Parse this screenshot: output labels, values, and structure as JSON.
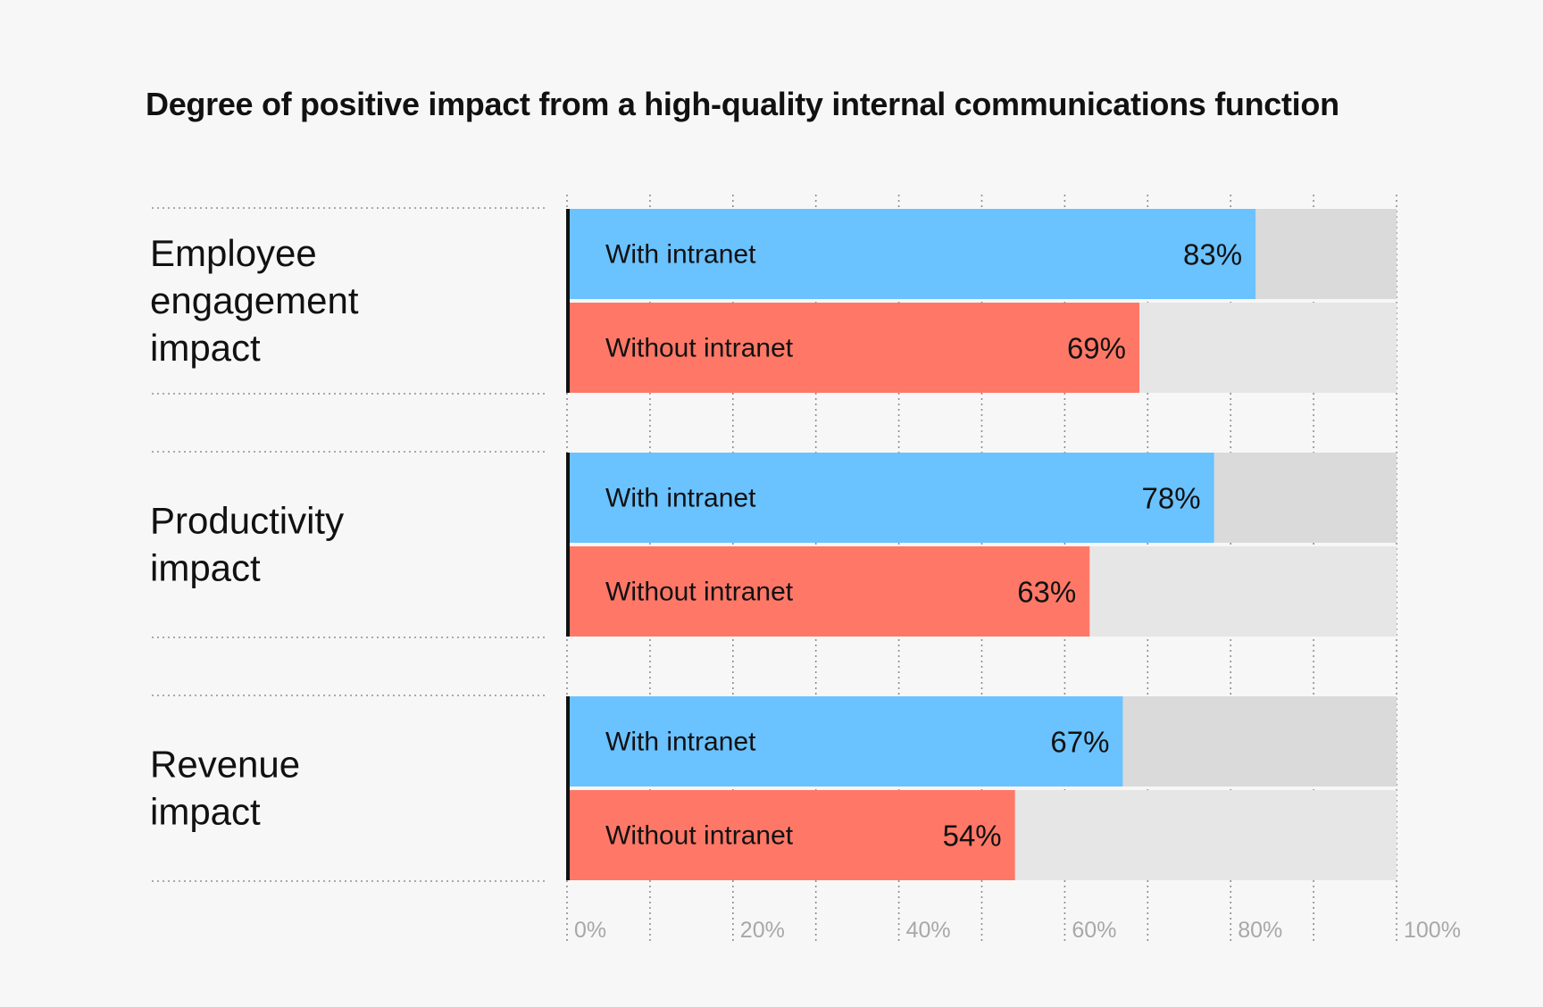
{
  "chart_data": {
    "type": "bar",
    "orientation": "horizontal",
    "title": "Degree of positive impact from a high-quality internal communications function",
    "xlim": [
      0,
      100
    ],
    "x_ticks": [
      "0%",
      "20%",
      "40%",
      "60%",
      "80%",
      "100%"
    ],
    "grid": true,
    "value_suffix": "%",
    "categories": [
      [
        "Employee",
        "engagement",
        "impact"
      ],
      [
        "Productivity",
        "impact"
      ],
      [
        "Revenue",
        "impact"
      ]
    ],
    "series": [
      {
        "name": "With intranet",
        "color": "#6ac2ff",
        "track_color": "#dadada",
        "values": [
          83,
          78,
          67
        ]
      },
      {
        "name": "Without intranet",
        "color": "#ff7867",
        "track_color": "#e6e6e6",
        "values": [
          69,
          63,
          54
        ]
      }
    ]
  }
}
